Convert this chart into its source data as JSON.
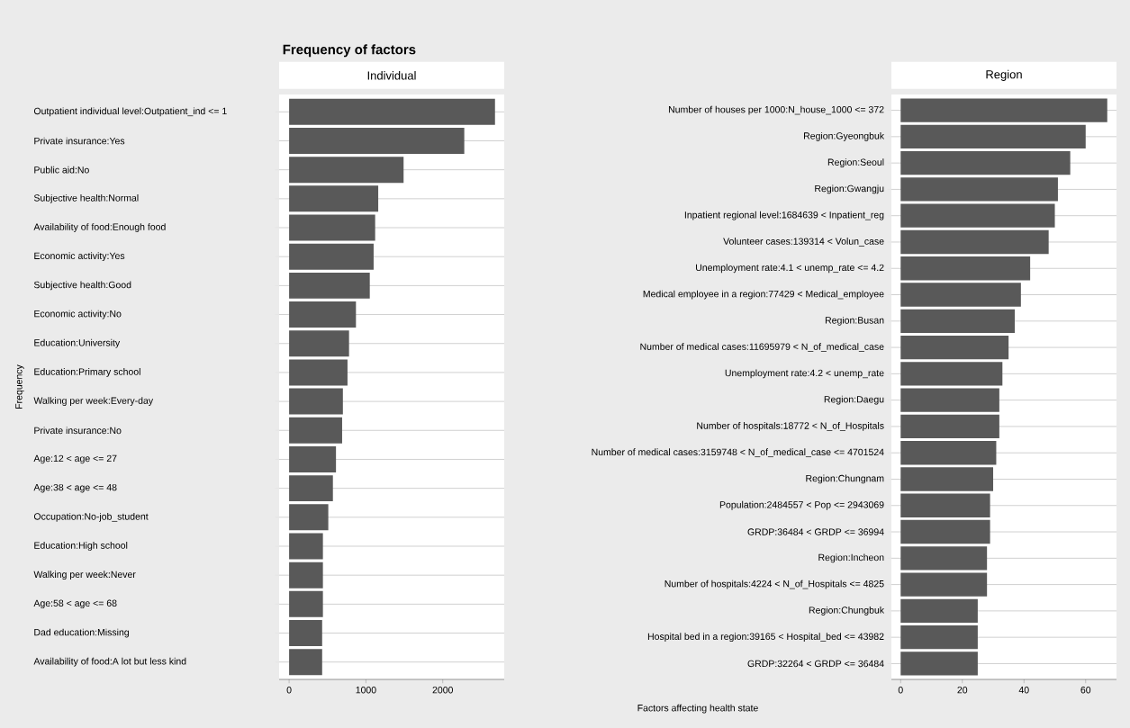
{
  "chart_data": [
    {
      "type": "bar",
      "orientation": "horizontal",
      "title": "Frequency of factors",
      "subtitle": "Individual",
      "ylabel": "Frequency",
      "categories": [
        "Outpatient individual level:Outpatient_ind <= 1",
        "Private insurance:Yes",
        "Public aid:No",
        "Subjective health:Normal",
        "Availability of food:Enough food",
        "Economic activity:Yes",
        "Subjective health:Good",
        "Economic activity:No",
        "Education:University",
        "Education:Primary school",
        "Walking per week:Every-day",
        "Private insurance:No",
        "Age:12 < age <= 27",
        "Age:38 < age <= 48",
        "Occupation:No-job_student",
        "Education:High school",
        "Walking per week:Never",
        "Age:58 < age <= 68",
        "Dad education:Missing",
        "Availability of food:A lot but less kind"
      ],
      "values": [
        2680,
        2280,
        1490,
        1160,
        1120,
        1100,
        1050,
        870,
        780,
        760,
        700,
        690,
        610,
        570,
        510,
        440,
        440,
        440,
        430,
        430
      ],
      "color": "#595959",
      "xlim": [
        -130,
        2800
      ],
      "xticks": [
        0,
        1000,
        2000
      ],
      "grid": "y"
    },
    {
      "type": "bar",
      "orientation": "horizontal",
      "subtitle": "Region",
      "xlabel": "Factors affecting health state",
      "categories": [
        "Number of houses per 1000:N_house_1000 <= 372",
        "Region:Gyeongbuk",
        "Region:Seoul",
        "Region:Gwangju",
        "Inpatient regional level:1684639 < Inpatient_reg",
        "Volunteer cases:139314 < Volun_case",
        "Unemployment rate:4.1 < unemp_rate <= 4.2",
        "Medical employee in a region:77429 < Medical_employee",
        "Region:Busan",
        "Number of medical cases:11695979 < N_of_medical_case",
        "Unemployment rate:4.2 < unemp_rate",
        "Region:Daegu",
        "Number of hospitals:18772 < N_of_Hospitals",
        "Number of medical cases:3159748 < N_of_medical_case <= 4701524",
        "Region:Chungnam",
        "Population:2484557 < Pop <= 2943069",
        "GRDP:36484 < GRDP <= 36994",
        "Region:Incheon",
        "Number of hospitals:4224 < N_of_Hospitals <= 4825",
        "Region:Chungbuk",
        "Hospital bed in a region:39165 < Hospital_bed <= 43982",
        "GRDP:32264 < GRDP <= 36484"
      ],
      "values": [
        67,
        60,
        55,
        51,
        50,
        48,
        42,
        39,
        37,
        35,
        33,
        32,
        32,
        31,
        30,
        29,
        29,
        28,
        28,
        25,
        25,
        25
      ],
      "color": "#595959",
      "xlim": [
        -3,
        70
      ],
      "xticks": [
        0,
        20,
        40,
        60
      ],
      "grid": "y"
    }
  ]
}
